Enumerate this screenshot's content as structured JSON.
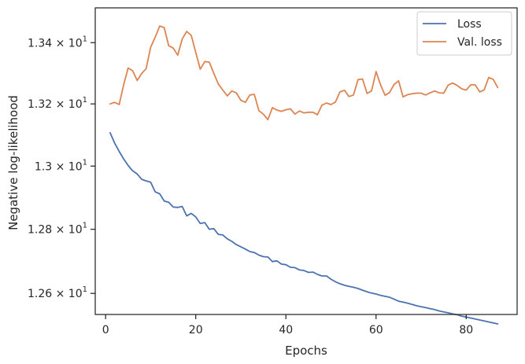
{
  "chart_data": {
    "type": "line",
    "xlabel": "Epochs",
    "ylabel": "Negative log-likelihood",
    "x_ticks": [
      0,
      20,
      40,
      60,
      80
    ],
    "y_ticks": [
      {
        "value": 12.6,
        "label": "1.26 × 10",
        "exp": "1"
      },
      {
        "value": 12.8,
        "label": "1.28 × 10",
        "exp": "1"
      },
      {
        "value": 13.0,
        "label": "1.3 × 10",
        "exp": "1"
      },
      {
        "value": 13.2,
        "label": "1.32 × 10",
        "exp": "1"
      },
      {
        "value": 13.4,
        "label": "1.34 × 10",
        "exp": "1"
      }
    ],
    "xlim": [
      -2.3,
      91.3
    ],
    "ylim": [
      12.535,
      13.515
    ],
    "y_scale": "log",
    "legend_position": "top-right",
    "grid": false,
    "series": [
      {
        "name": "Loss",
        "color": "#4c72b0",
        "x": [
          1,
          2,
          3,
          4,
          5,
          6,
          7,
          8,
          9,
          10,
          11,
          12,
          13,
          14,
          15,
          16,
          17,
          18,
          19,
          20,
          21,
          22,
          23,
          24,
          25,
          26,
          27,
          28,
          29,
          30,
          31,
          32,
          33,
          34,
          35,
          36,
          37,
          38,
          39,
          40,
          41,
          42,
          43,
          44,
          45,
          46,
          47,
          48,
          49,
          50,
          51,
          52,
          53,
          54,
          55,
          56,
          57,
          58,
          59,
          60,
          61,
          62,
          63,
          64,
          65,
          66,
          67,
          68,
          69,
          70,
          71,
          72,
          73,
          74,
          75,
          76,
          77,
          78,
          79,
          80,
          81,
          82,
          83,
          84,
          85,
          86,
          87
        ],
        "values": [
          13.107,
          13.074,
          13.047,
          13.023,
          13.002,
          12.985,
          12.975,
          12.958,
          12.953,
          12.949,
          12.918,
          12.912,
          12.889,
          12.885,
          12.87,
          12.869,
          12.872,
          12.842,
          12.85,
          12.839,
          12.818,
          12.821,
          12.8,
          12.802,
          12.784,
          12.782,
          12.77,
          12.762,
          12.752,
          12.745,
          12.738,
          12.73,
          12.727,
          12.719,
          12.714,
          12.713,
          12.699,
          12.701,
          12.691,
          12.689,
          12.681,
          12.68,
          12.673,
          12.671,
          12.665,
          12.666,
          12.659,
          12.654,
          12.654,
          12.644,
          12.636,
          12.63,
          12.625,
          12.622,
          12.619,
          12.615,
          12.61,
          12.605,
          12.601,
          12.598,
          12.594,
          12.591,
          12.588,
          12.582,
          12.576,
          12.573,
          12.57,
          12.566,
          12.562,
          12.559,
          12.556,
          12.553,
          12.55,
          12.546,
          12.543,
          12.54,
          12.537,
          12.534,
          12.53,
          12.527,
          12.524,
          12.521,
          12.518,
          12.515,
          12.512,
          12.509,
          12.506
        ]
      },
      {
        "name": "Val. loss",
        "color": "#dd8452",
        "x": [
          1,
          2,
          3,
          4,
          5,
          6,
          7,
          8,
          9,
          10,
          11,
          12,
          13,
          14,
          15,
          16,
          17,
          18,
          19,
          20,
          21,
          22,
          23,
          24,
          25,
          26,
          27,
          28,
          29,
          30,
          31,
          32,
          33,
          34,
          35,
          36,
          37,
          38,
          39,
          40,
          41,
          42,
          43,
          44,
          45,
          46,
          47,
          48,
          49,
          50,
          51,
          52,
          53,
          54,
          55,
          56,
          57,
          58,
          59,
          60,
          61,
          62,
          63,
          64,
          65,
          66,
          67,
          68,
          69,
          70,
          71,
          72,
          73,
          74,
          75,
          76,
          77,
          78,
          79,
          80,
          81,
          82,
          83,
          84,
          85,
          86,
          87
        ],
        "values": [
          13.2,
          13.205,
          13.198,
          13.262,
          13.317,
          13.308,
          13.276,
          13.299,
          13.315,
          13.385,
          13.418,
          13.455,
          13.45,
          13.39,
          13.382,
          13.359,
          13.412,
          13.437,
          13.424,
          13.368,
          13.313,
          13.338,
          13.336,
          13.3,
          13.265,
          13.245,
          13.226,
          13.242,
          13.236,
          13.212,
          13.205,
          13.229,
          13.231,
          13.178,
          13.167,
          13.149,
          13.188,
          13.18,
          13.176,
          13.181,
          13.184,
          13.167,
          13.177,
          13.171,
          13.173,
          13.173,
          13.165,
          13.196,
          13.203,
          13.198,
          13.206,
          13.239,
          13.244,
          13.224,
          13.229,
          13.279,
          13.281,
          13.234,
          13.242,
          13.305,
          13.262,
          13.228,
          13.237,
          13.263,
          13.275,
          13.223,
          13.23,
          13.233,
          13.235,
          13.235,
          13.229,
          13.236,
          13.242,
          13.236,
          13.235,
          13.261,
          13.268,
          13.26,
          13.249,
          13.245,
          13.262,
          13.262,
          13.239,
          13.246,
          13.286,
          13.28,
          13.253
        ]
      }
    ]
  }
}
